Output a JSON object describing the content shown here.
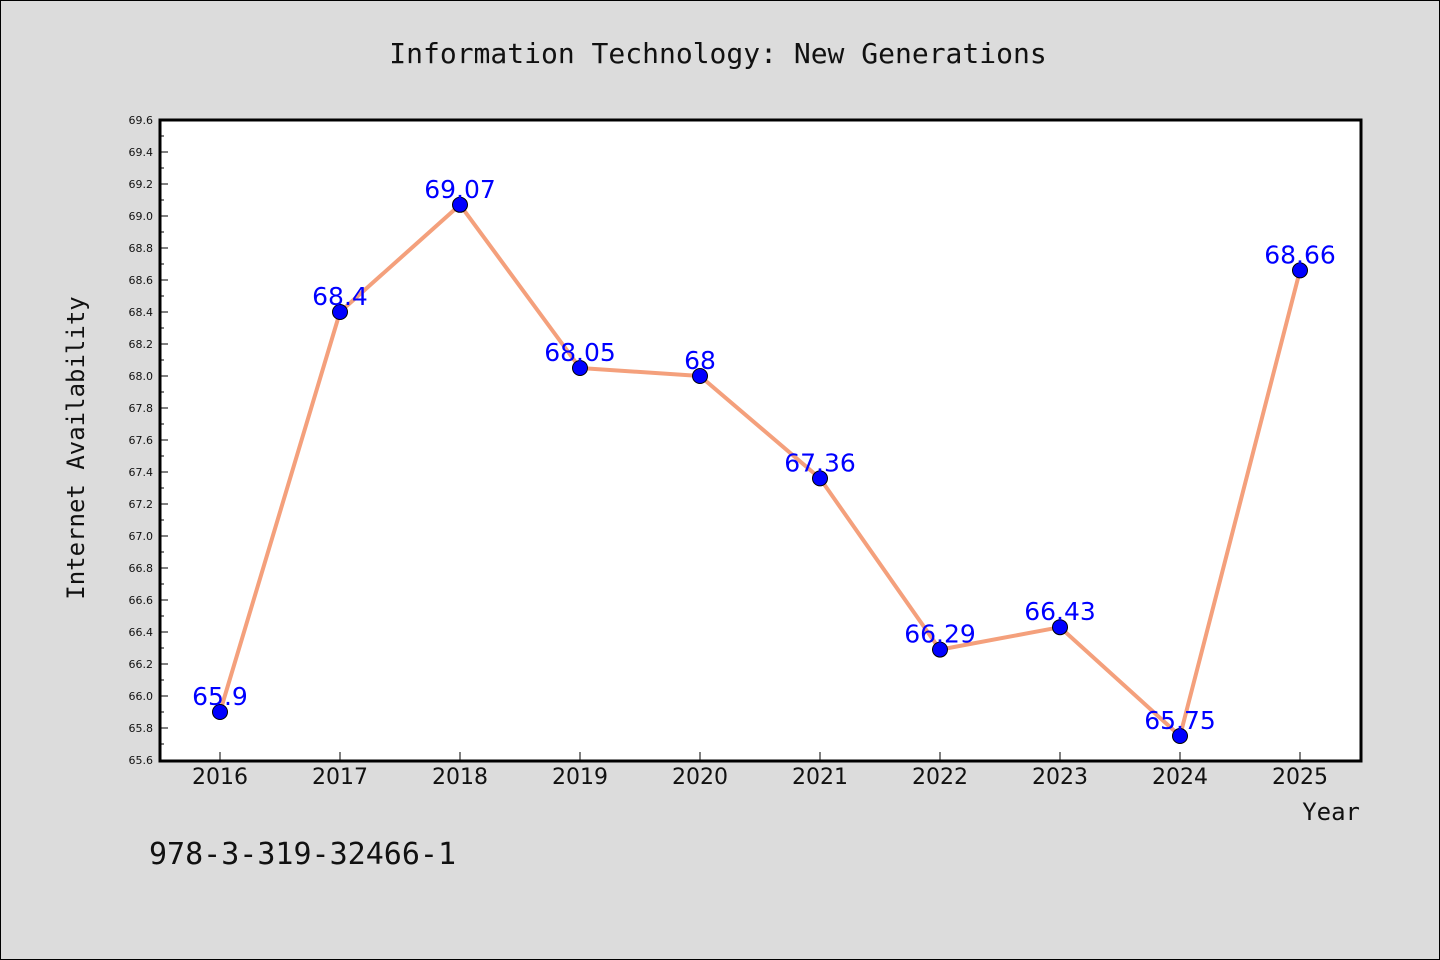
{
  "chart_data": {
    "type": "line",
    "title": "Information Technology: New Generations",
    "xlabel": "Year",
    "ylabel": "Internet Availability",
    "categories": [
      "2016",
      "2017",
      "2018",
      "2019",
      "2020",
      "2021",
      "2022",
      "2023",
      "2024",
      "2025"
    ],
    "series": [
      {
        "values": [
          65.9,
          68.4,
          69.07,
          68.05,
          68.0,
          67.36,
          66.29,
          66.43,
          65.75,
          68.66
        ],
        "value_labels": [
          "65.9",
          "68.4",
          "69.07",
          "68.05",
          "68",
          "67.36",
          "66.29",
          "66.43",
          "65.75",
          "68.66"
        ],
        "line_color": "#f4a07c",
        "marker_color": "#0000ff"
      }
    ],
    "ylim": [
      65.6,
      69.6
    ],
    "yticks": [
      "65.6",
      "65.8",
      "66.0",
      "66.2",
      "66.4",
      "66.6",
      "66.8",
      "67.0",
      "67.2",
      "67.4",
      "67.6",
      "67.8",
      "68.0",
      "68.2",
      "68.4",
      "68.6",
      "68.8",
      "69.0",
      "69.2",
      "69.4",
      "69.6"
    ],
    "grid": false,
    "legend": "none"
  },
  "annotation": "978-3-319-32466-1",
  "colors": {
    "background": "#dcdcdc",
    "plot_background": "#ffffff",
    "data_label": "#0000ff"
  }
}
